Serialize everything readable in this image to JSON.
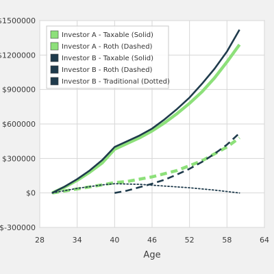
{
  "chart_data": {
    "type": "line",
    "xlabel": "Age",
    "ylabel": "",
    "xlim": [
      28,
      64
    ],
    "ylim": [
      -300000,
      1500000
    ],
    "x_ticks": [
      28,
      34,
      40,
      46,
      52,
      58,
      64
    ],
    "x_tick_labels": [
      "28",
      "34",
      "40",
      "46",
      "52",
      "58",
      "64"
    ],
    "y_ticks": [
      -300000,
      0,
      300000,
      600000,
      900000,
      1200000,
      1500000
    ],
    "y_tick_labels": [
      "$-300000",
      "$0",
      "$300000",
      "$600000",
      "$900000",
      "$1200000",
      "$1500000"
    ],
    "grid": true,
    "legend_position": "top-left",
    "series": [
      {
        "name": "Investor A - Taxable (Solid)",
        "color": "#8de07a",
        "style": "solid",
        "x": [
          30,
          32,
          34,
          36,
          38,
          40,
          42,
          44,
          46,
          48,
          50,
          52,
          54,
          56,
          58,
          60
        ],
        "y": [
          0,
          50000,
          110000,
          180000,
          260000,
          380000,
          430000,
          480000,
          540000,
          610000,
          690000,
          780000,
          880000,
          1000000,
          1140000,
          1290000
        ]
      },
      {
        "name": "Investor A - Roth (Dashed)",
        "color": "#8de07a",
        "style": "dashed",
        "x": [
          30,
          34,
          38,
          40,
          42,
          46,
          50,
          54,
          58,
          60
        ],
        "y": [
          0,
          35000,
          70000,
          90000,
          100000,
          140000,
          195000,
          280000,
          400000,
          480000
        ]
      },
      {
        "name": "Investor B - Taxable (Solid)",
        "color": "#1f3b4c",
        "style": "solid",
        "x": [
          30,
          32,
          34,
          36,
          38,
          40,
          42,
          44,
          46,
          48,
          50,
          52,
          54,
          56,
          58,
          60
        ],
        "y": [
          0,
          55000,
          120000,
          195000,
          285000,
          400000,
          450000,
          500000,
          560000,
          640000,
          730000,
          830000,
          950000,
          1080000,
          1230000,
          1420000
        ]
      },
      {
        "name": "Investor B - Roth (Dashed)",
        "color": "#1f3b4c",
        "style": "dashed",
        "x": [
          40,
          42,
          44,
          46,
          48,
          50,
          52,
          54,
          56,
          58,
          60
        ],
        "y": [
          0,
          20000,
          50000,
          80000,
          115000,
          160000,
          210000,
          270000,
          340000,
          420000,
          520000
        ]
      },
      {
        "name": "Investor B - Traditional (Dotted)",
        "color": "#1f3b4c",
        "style": "dotted",
        "x": [
          30,
          34,
          38,
          40,
          44,
          48,
          52,
          56,
          60
        ],
        "y": [
          0,
          40000,
          70000,
          80000,
          75000,
          60000,
          45000,
          25000,
          0
        ]
      }
    ]
  }
}
